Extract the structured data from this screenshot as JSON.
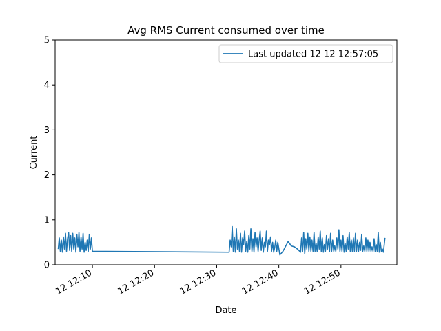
{
  "chart_data": {
    "type": "line",
    "title": "Avg RMS Current consumed over time",
    "xlabel": "Date",
    "ylabel": "Current",
    "xlim": [
      "12 12:04:00",
      "12 12:59:00"
    ],
    "ylim": [
      0,
      5
    ],
    "yticks": [
      0,
      1,
      2,
      3,
      4,
      5
    ],
    "xticks": [
      "12 12:10",
      "12 12:20",
      "12 12:30",
      "12 12:40",
      "12 12:50"
    ],
    "grid": false,
    "legend_position": "top-right",
    "colors": {
      "series": "#1f77b4"
    },
    "series": [
      {
        "name": "Last updated 12 12 12:57:05",
        "x": [
          "12 12:04:30",
          "12 12:04:40",
          "12 12:04:50",
          "12 12:05:00",
          "12 12:05:10",
          "12 12:05:20",
          "12 12:05:30",
          "12 12:05:40",
          "12 12:05:50",
          "12 12:06:00",
          "12 12:06:10",
          "12 12:06:20",
          "12 12:06:30",
          "12 12:06:40",
          "12 12:06:50",
          "12 12:07:00",
          "12 12:07:10",
          "12 12:07:20",
          "12 12:07:30",
          "12 12:07:40",
          "12 12:07:50",
          "12 12:08:00",
          "12 12:08:10",
          "12 12:08:20",
          "12 12:08:30",
          "12 12:08:40",
          "12 12:08:50",
          "12 12:09:00",
          "12 12:09:10",
          "12 12:09:20",
          "12 12:09:30",
          "12 12:09:40",
          "12 12:09:50",
          "12 12:10:00",
          "12 12:32:00",
          "12 12:32:10",
          "12 12:32:20",
          "12 12:32:30",
          "12 12:32:40",
          "12 12:32:50",
          "12 12:33:00",
          "12 12:33:10",
          "12 12:33:20",
          "12 12:33:30",
          "12 12:33:40",
          "12 12:33:50",
          "12 12:34:00",
          "12 12:34:10",
          "12 12:34:20",
          "12 12:34:30",
          "12 12:34:40",
          "12 12:34:50",
          "12 12:35:00",
          "12 12:35:10",
          "12 12:35:20",
          "12 12:35:30",
          "12 12:35:40",
          "12 12:35:50",
          "12 12:36:00",
          "12 12:36:10",
          "12 12:36:20",
          "12 12:36:30",
          "12 12:36:40",
          "12 12:36:50",
          "12 12:37:00",
          "12 12:37:10",
          "12 12:37:20",
          "12 12:37:30",
          "12 12:37:40",
          "12 12:37:50",
          "12 12:38:00",
          "12 12:38:10",
          "12 12:38:20",
          "12 12:38:30",
          "12 12:38:40",
          "12 12:38:50",
          "12 12:39:00",
          "12 12:39:10",
          "12 12:39:20",
          "12 12:39:30",
          "12 12:39:40",
          "12 12:39:50",
          "12 12:40:10",
          "12 12:40:40",
          "12 12:41:30",
          "12 12:42:00",
          "12 12:42:30",
          "12 12:43:00",
          "12 12:43:30",
          "12 12:43:40",
          "12 12:43:50",
          "12 12:44:00",
          "12 12:44:10",
          "12 12:44:20",
          "12 12:44:30",
          "12 12:44:40",
          "12 12:44:50",
          "12 12:45:00",
          "12 12:45:10",
          "12 12:45:20",
          "12 12:45:30",
          "12 12:45:40",
          "12 12:45:50",
          "12 12:46:00",
          "12 12:46:10",
          "12 12:46:20",
          "12 12:46:30",
          "12 12:46:40",
          "12 12:46:50",
          "12 12:47:00",
          "12 12:47:10",
          "12 12:47:20",
          "12 12:47:30",
          "12 12:47:40",
          "12 12:47:50",
          "12 12:48:00",
          "12 12:48:10",
          "12 12:48:20",
          "12 12:48:30",
          "12 12:48:40",
          "12 12:48:50",
          "12 12:49:00",
          "12 12:49:10",
          "12 12:49:20",
          "12 12:49:30",
          "12 12:49:40",
          "12 12:49:50",
          "12 12:50:00",
          "12 12:50:10",
          "12 12:50:20",
          "12 12:50:30",
          "12 12:50:40",
          "12 12:50:50",
          "12 12:51:00",
          "12 12:51:10",
          "12 12:51:20",
          "12 12:51:30",
          "12 12:51:40",
          "12 12:51:50",
          "12 12:52:00",
          "12 12:52:10",
          "12 12:52:20",
          "12 12:52:30",
          "12 12:52:40",
          "12 12:52:50",
          "12 12:53:00",
          "12 12:53:10",
          "12 12:53:20",
          "12 12:53:30",
          "12 12:53:40",
          "12 12:53:50",
          "12 12:54:00",
          "12 12:54:10",
          "12 12:54:20",
          "12 12:54:30",
          "12 12:54:40",
          "12 12:54:50",
          "12 12:55:00",
          "12 12:55:10",
          "12 12:55:20",
          "12 12:55:30",
          "12 12:55:40",
          "12 12:55:50",
          "12 12:56:00",
          "12 12:56:10",
          "12 12:56:20",
          "12 12:56:30",
          "12 12:56:40",
          "12 12:56:50",
          "12 12:57:05"
        ],
        "y": [
          0.35,
          0.6,
          0.3,
          0.55,
          0.28,
          0.62,
          0.35,
          0.7,
          0.3,
          0.58,
          0.72,
          0.32,
          0.65,
          0.3,
          0.7,
          0.35,
          0.6,
          0.28,
          0.68,
          0.4,
          0.72,
          0.3,
          0.62,
          0.35,
          0.7,
          0.28,
          0.5,
          0.32,
          0.55,
          0.3,
          0.68,
          0.35,
          0.6,
          0.3,
          0.28,
          0.55,
          0.4,
          0.85,
          0.3,
          0.62,
          0.28,
          0.8,
          0.35,
          0.55,
          0.3,
          0.7,
          0.28,
          0.6,
          0.45,
          0.75,
          0.3,
          0.52,
          0.28,
          0.65,
          0.35,
          0.8,
          0.3,
          0.58,
          0.28,
          0.72,
          0.4,
          0.6,
          0.3,
          0.55,
          0.75,
          0.32,
          0.6,
          0.28,
          0.5,
          0.4,
          0.75,
          0.3,
          0.55,
          0.45,
          0.62,
          0.3,
          0.5,
          0.28,
          0.38,
          0.55,
          0.3,
          0.5,
          0.22,
          0.3,
          0.52,
          0.42,
          0.4,
          0.35,
          0.28,
          0.6,
          0.3,
          0.72,
          0.25,
          0.58,
          0.35,
          0.7,
          0.3,
          0.62,
          0.3,
          0.55,
          0.3,
          0.72,
          0.3,
          0.48,
          0.3,
          0.62,
          0.35,
          0.75,
          0.3,
          0.6,
          0.28,
          0.45,
          0.3,
          0.65,
          0.35,
          0.58,
          0.3,
          0.7,
          0.3,
          0.55,
          0.3,
          0.42,
          0.3,
          0.6,
          0.35,
          0.78,
          0.3,
          0.55,
          0.3,
          0.65,
          0.28,
          0.48,
          0.3,
          0.62,
          0.35,
          0.72,
          0.3,
          0.55,
          0.3,
          0.6,
          0.3,
          0.7,
          0.3,
          0.55,
          0.3,
          0.5,
          0.32,
          0.68,
          0.3,
          0.42,
          0.3,
          0.6,
          0.3,
          0.55,
          0.3,
          0.5,
          0.3,
          0.4,
          0.3,
          0.58,
          0.3,
          0.45,
          0.3,
          0.72,
          0.28,
          0.5,
          0.3,
          0.35,
          0.28,
          0.6
        ]
      }
    ]
  }
}
